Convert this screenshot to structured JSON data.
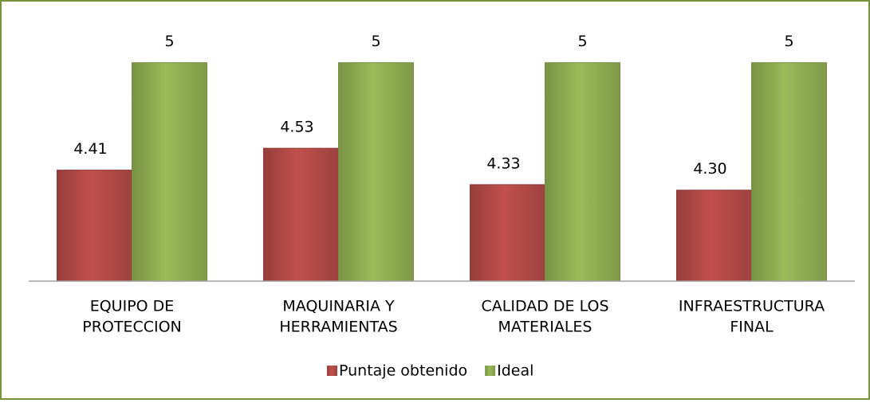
{
  "chart_data": {
    "type": "bar",
    "categories": [
      [
        "EQUIPO DE",
        "PROTECCION"
      ],
      [
        "MAQUINARIA Y",
        "HERRAMIENTAS"
      ],
      [
        "CALIDAD DE LOS",
        "MATERIALES"
      ],
      [
        "INFRAESTRUCTURA",
        "FINAL"
      ]
    ],
    "series": [
      {
        "name": "Puntaje obtenido",
        "color": "#c0504d",
        "values": [
          4.41,
          4.53,
          4.33,
          4.3
        ],
        "value_labels": [
          "4.41",
          "4.53",
          "4.33",
          "4.30"
        ]
      },
      {
        "name": "Ideal",
        "color": "#9bbb59",
        "values": [
          5,
          5,
          5,
          5
        ]
      }
    ],
    "ylim": [
      3.8,
      5.2
    ],
    "legend": "bottom"
  }
}
